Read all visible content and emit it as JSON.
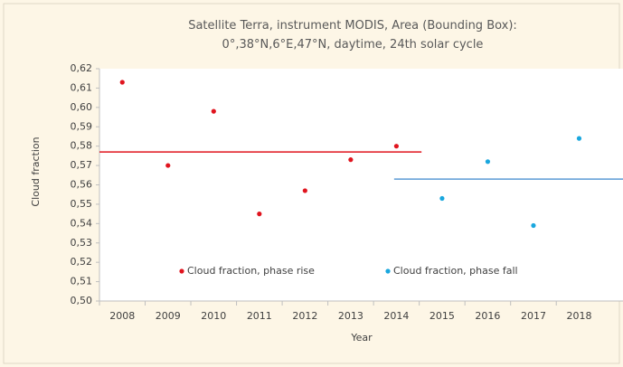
{
  "chart_data": {
    "type": "scatter",
    "title": "Satellite Terra, instrument MODIS, Area (Bounding Box): 0°,38°N,6°E,47°N, daytime, 24th solar cycle",
    "x_label": "Year",
    "y_label": "Cloud fraction",
    "xlim": [
      2007.5,
      2019
    ],
    "xticks": [
      2008,
      2009,
      2010,
      2011,
      2012,
      2013,
      2014,
      2015,
      2016,
      2017,
      2018
    ],
    "ylim": [
      0.5,
      0.62
    ],
    "yticks": [
      {
        "value": 0.5,
        "label": "0,50"
      },
      {
        "value": 0.51,
        "label": "0,51"
      },
      {
        "value": 0.52,
        "label": "0,52"
      },
      {
        "value": 0.53,
        "label": "0,53"
      },
      {
        "value": 0.54,
        "label": "0,54"
      },
      {
        "value": 0.55,
        "label": "0,55"
      },
      {
        "value": 0.56,
        "label": "0,56"
      },
      {
        "value": 0.57,
        "label": "0,57"
      },
      {
        "value": 0.58,
        "label": "0,58"
      },
      {
        "value": 0.59,
        "label": "0,59"
      },
      {
        "value": 0.6,
        "label": "0,60"
      },
      {
        "value": 0.61,
        "label": "0,61"
      },
      {
        "value": 0.62,
        "label": "0,62"
      }
    ],
    "series": [
      {
        "name": "Cloud fraction, phase rise",
        "color": "#e0141e",
        "x": [
          2008,
          2009,
          2010,
          2011,
          2012,
          2013,
          2014
        ],
        "values": [
          0.613,
          0.57,
          0.598,
          0.545,
          0.557,
          0.573,
          0.58
        ]
      },
      {
        "name": "Cloud fraction, phase fall",
        "color": "#1aa7de",
        "x": [
          2015,
          2016,
          2017,
          2018
        ],
        "values": [
          0.553,
          0.572,
          0.539,
          0.584
        ]
      }
    ],
    "mean_lines": [
      {
        "value": 0.577,
        "x": [
          2007.5,
          2014.55
        ],
        "color": "#e0141e"
      },
      {
        "value": 0.563,
        "x": [
          2013.95,
          2019
        ],
        "color": "#5b9bd5"
      }
    ]
  }
}
